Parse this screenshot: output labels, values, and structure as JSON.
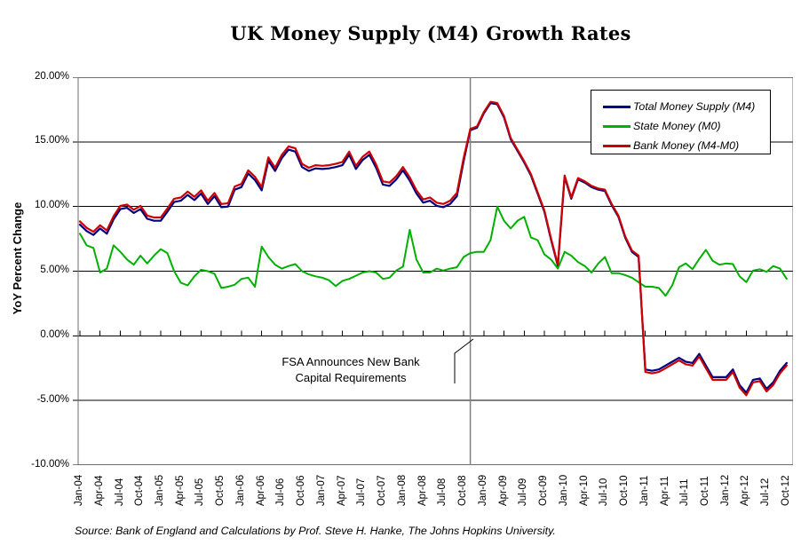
{
  "source_note": "Source: Bank of England and Calculations by Prof. Steve H. Hanke, The Johns Hopkins University.",
  "annotation": {
    "line1": "FSA Announces New Bank",
    "line2": "Capital Requirements"
  },
  "chart_data": {
    "type": "line",
    "title": "UK Money Supply (M4) Growth Rates",
    "xlabel": "",
    "ylabel": "YoY Percent Change",
    "ylim": [
      -10,
      20
    ],
    "grid": true,
    "legend_position": "top-right",
    "x_points": 106,
    "x_tick_every": 3,
    "x_start": "Jan-04",
    "x_end": "Oct-12",
    "event_line_month_index": 58,
    "y_tick_values": [
      20,
      15,
      10,
      5,
      0,
      -5,
      -10
    ],
    "y_tick_labels": [
      "20.00%",
      "15.00%",
      "10.00%",
      "5.00%",
      "0.00%",
      "-5.00%",
      "-10.00%"
    ],
    "x_tick_labels": [
      "Jan-04",
      "Apr-04",
      "Jul-04",
      "Oct-04",
      "Jan-05",
      "Apr-05",
      "Jul-05",
      "Oct-05",
      "Jan-06",
      "Apr-06",
      "Jul-06",
      "Oct-06",
      "Jan-07",
      "Apr-07",
      "Jul-07",
      "Oct-07",
      "Jan-08",
      "Apr-08",
      "Jul-08",
      "Oct-08",
      "Jan-09",
      "Apr-09",
      "Jul-09",
      "Oct-09",
      "Jan-10",
      "Apr-10",
      "Jul-10",
      "Oct-10",
      "Jan-11",
      "Apr-11",
      "Jul-11",
      "Oct-11",
      "Jan-12",
      "Apr-12",
      "Jul-12",
      "Oct-12"
    ],
    "series": [
      {
        "name": "Total Money Supply (M4)",
        "color": "#000080",
        "width": 2.2,
        "values": [
          8.6,
          8.1,
          7.8,
          8.3,
          7.9,
          9.0,
          9.8,
          9.9,
          9.5,
          9.8,
          9.05,
          8.9,
          8.9,
          9.6,
          10.35,
          10.45,
          10.9,
          10.5,
          11.0,
          10.2,
          10.8,
          9.95,
          10.0,
          11.3,
          11.5,
          12.55,
          12.05,
          11.25,
          13.55,
          12.75,
          13.75,
          14.4,
          14.25,
          13.05,
          12.75,
          12.95,
          12.9,
          12.95,
          13.05,
          13.2,
          14.0,
          12.9,
          13.6,
          14.0,
          13.0,
          11.7,
          11.6,
          12.1,
          12.8,
          12.0,
          11.0,
          10.3,
          10.45,
          10.05,
          9.95,
          10.2,
          10.8,
          13.5,
          15.9,
          16.1,
          17.2,
          18.0,
          17.9,
          16.9,
          15.2,
          14.3,
          13.4,
          12.4,
          11.0,
          9.6,
          7.4,
          5.4,
          12.3,
          10.6,
          12.1,
          11.85,
          11.5,
          11.3,
          11.2,
          10.1,
          9.2,
          7.6,
          6.5,
          6.1,
          -2.6,
          -2.7,
          -2.6,
          -2.3,
          -2.0,
          -1.7,
          -2.0,
          -2.1,
          -1.4,
          -2.3,
          -3.2,
          -3.2,
          -3.2,
          -2.6,
          -3.8,
          -4.4,
          -3.4,
          -3.3,
          -4.1,
          -3.6,
          -2.7,
          -2.1
        ]
      },
      {
        "name": "State Money (M0)",
        "color": "#00B000",
        "width": 2,
        "values": [
          7.9,
          7.0,
          6.8,
          4.9,
          5.2,
          7.0,
          6.5,
          5.9,
          5.5,
          6.2,
          5.6,
          6.2,
          6.7,
          6.4,
          5.0,
          4.1,
          3.9,
          4.6,
          5.1,
          5.0,
          4.8,
          3.7,
          3.8,
          3.95,
          4.4,
          4.5,
          3.8,
          6.9,
          6.1,
          5.5,
          5.2,
          5.4,
          5.55,
          5.0,
          4.75,
          4.6,
          4.5,
          4.3,
          3.85,
          4.25,
          4.4,
          4.65,
          4.9,
          5.0,
          4.9,
          4.4,
          4.5,
          5.05,
          5.35,
          8.2,
          5.9,
          4.9,
          4.9,
          5.2,
          5.05,
          5.2,
          5.3,
          6.1,
          6.4,
          6.5,
          6.5,
          7.4,
          10.0,
          8.9,
          8.3,
          8.9,
          9.2,
          7.6,
          7.4,
          6.3,
          5.9,
          5.2,
          6.5,
          6.2,
          5.7,
          5.4,
          4.9,
          5.6,
          6.1,
          4.85,
          4.85,
          4.7,
          4.5,
          4.15,
          3.8,
          3.8,
          3.7,
          3.1,
          3.9,
          5.3,
          5.6,
          5.15,
          5.95,
          6.65,
          5.8,
          5.5,
          5.6,
          5.55,
          4.6,
          4.15,
          5.05,
          5.15,
          4.95,
          5.4,
          5.2,
          4.4
        ]
      },
      {
        "name": "Bank Money (M4-M0)",
        "color": "#CC0000",
        "width": 2.2,
        "values": [
          8.85,
          8.35,
          8.05,
          8.55,
          8.15,
          9.25,
          10.05,
          10.15,
          9.75,
          10.05,
          9.3,
          9.15,
          9.15,
          9.85,
          10.6,
          10.7,
          11.15,
          10.75,
          11.25,
          10.45,
          11.05,
          10.2,
          10.25,
          11.55,
          11.75,
          12.8,
          12.3,
          11.5,
          13.8,
          13.0,
          14.0,
          14.65,
          14.5,
          13.3,
          13.0,
          13.2,
          13.15,
          13.2,
          13.3,
          13.45,
          14.25,
          13.15,
          13.85,
          14.25,
          13.25,
          11.95,
          11.85,
          12.35,
          13.05,
          12.25,
          11.25,
          10.55,
          10.7,
          10.3,
          10.2,
          10.45,
          11.05,
          13.75,
          16.0,
          16.2,
          17.3,
          18.1,
          18.0,
          17.0,
          15.3,
          14.4,
          13.5,
          12.5,
          11.1,
          9.7,
          7.5,
          5.5,
          12.4,
          10.7,
          12.2,
          11.95,
          11.6,
          11.4,
          11.3,
          10.2,
          9.3,
          7.7,
          6.6,
          6.2,
          -2.8,
          -2.9,
          -2.8,
          -2.5,
          -2.2,
          -1.9,
          -2.2,
          -2.3,
          -1.6,
          -2.5,
          -3.4,
          -3.4,
          -3.4,
          -2.8,
          -4.0,
          -4.6,
          -3.6,
          -3.5,
          -4.3,
          -3.8,
          -2.9,
          -2.3
        ]
      }
    ]
  }
}
